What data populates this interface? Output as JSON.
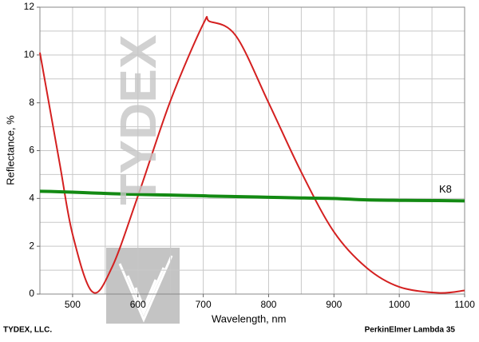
{
  "chart_data": {
    "type": "line",
    "x": [
      450,
      480,
      500,
      530,
      560,
      600,
      650,
      700,
      710,
      750,
      800,
      850,
      900,
      950,
      1000,
      1060,
      1100
    ],
    "series": [
      {
        "color": "#d42020",
        "values": [
          10.1,
          5.5,
          2.5,
          0.1,
          1.1,
          4.1,
          8.1,
          11.3,
          11.4,
          10.8,
          8.0,
          5.1,
          2.6,
          1.1,
          0.3,
          0.05,
          0.15
        ]
      },
      {
        "name": "K8",
        "color": "#138a13",
        "values": [
          4.3,
          4.28,
          4.26,
          4.23,
          4.2,
          4.17,
          4.14,
          4.11,
          4.1,
          4.08,
          4.05,
          4.02,
          4.0,
          3.94,
          3.92,
          3.91,
          3.9
        ]
      }
    ],
    "xlabel": "Wavelength, nm",
    "ylabel": "Reflectance, %",
    "xlim": [
      450,
      1100
    ],
    "ylim": [
      0,
      12
    ],
    "xticks": [
      500,
      600,
      700,
      800,
      900,
      1000,
      1100
    ],
    "yticks": [
      0,
      2,
      4,
      6,
      8,
      10,
      12
    ],
    "xgrid": [
      500,
      550,
      600,
      650,
      700,
      750,
      800,
      850,
      900,
      950,
      1000,
      1050
    ],
    "ygrid": [
      1,
      2,
      3,
      4,
      5,
      6,
      7,
      8,
      9,
      10,
      11
    ],
    "grid": true,
    "watermark": "TYDEX",
    "footer_left": "TYDEX, LLC.",
    "footer_right": "PerkinElmer Lambda 35"
  }
}
